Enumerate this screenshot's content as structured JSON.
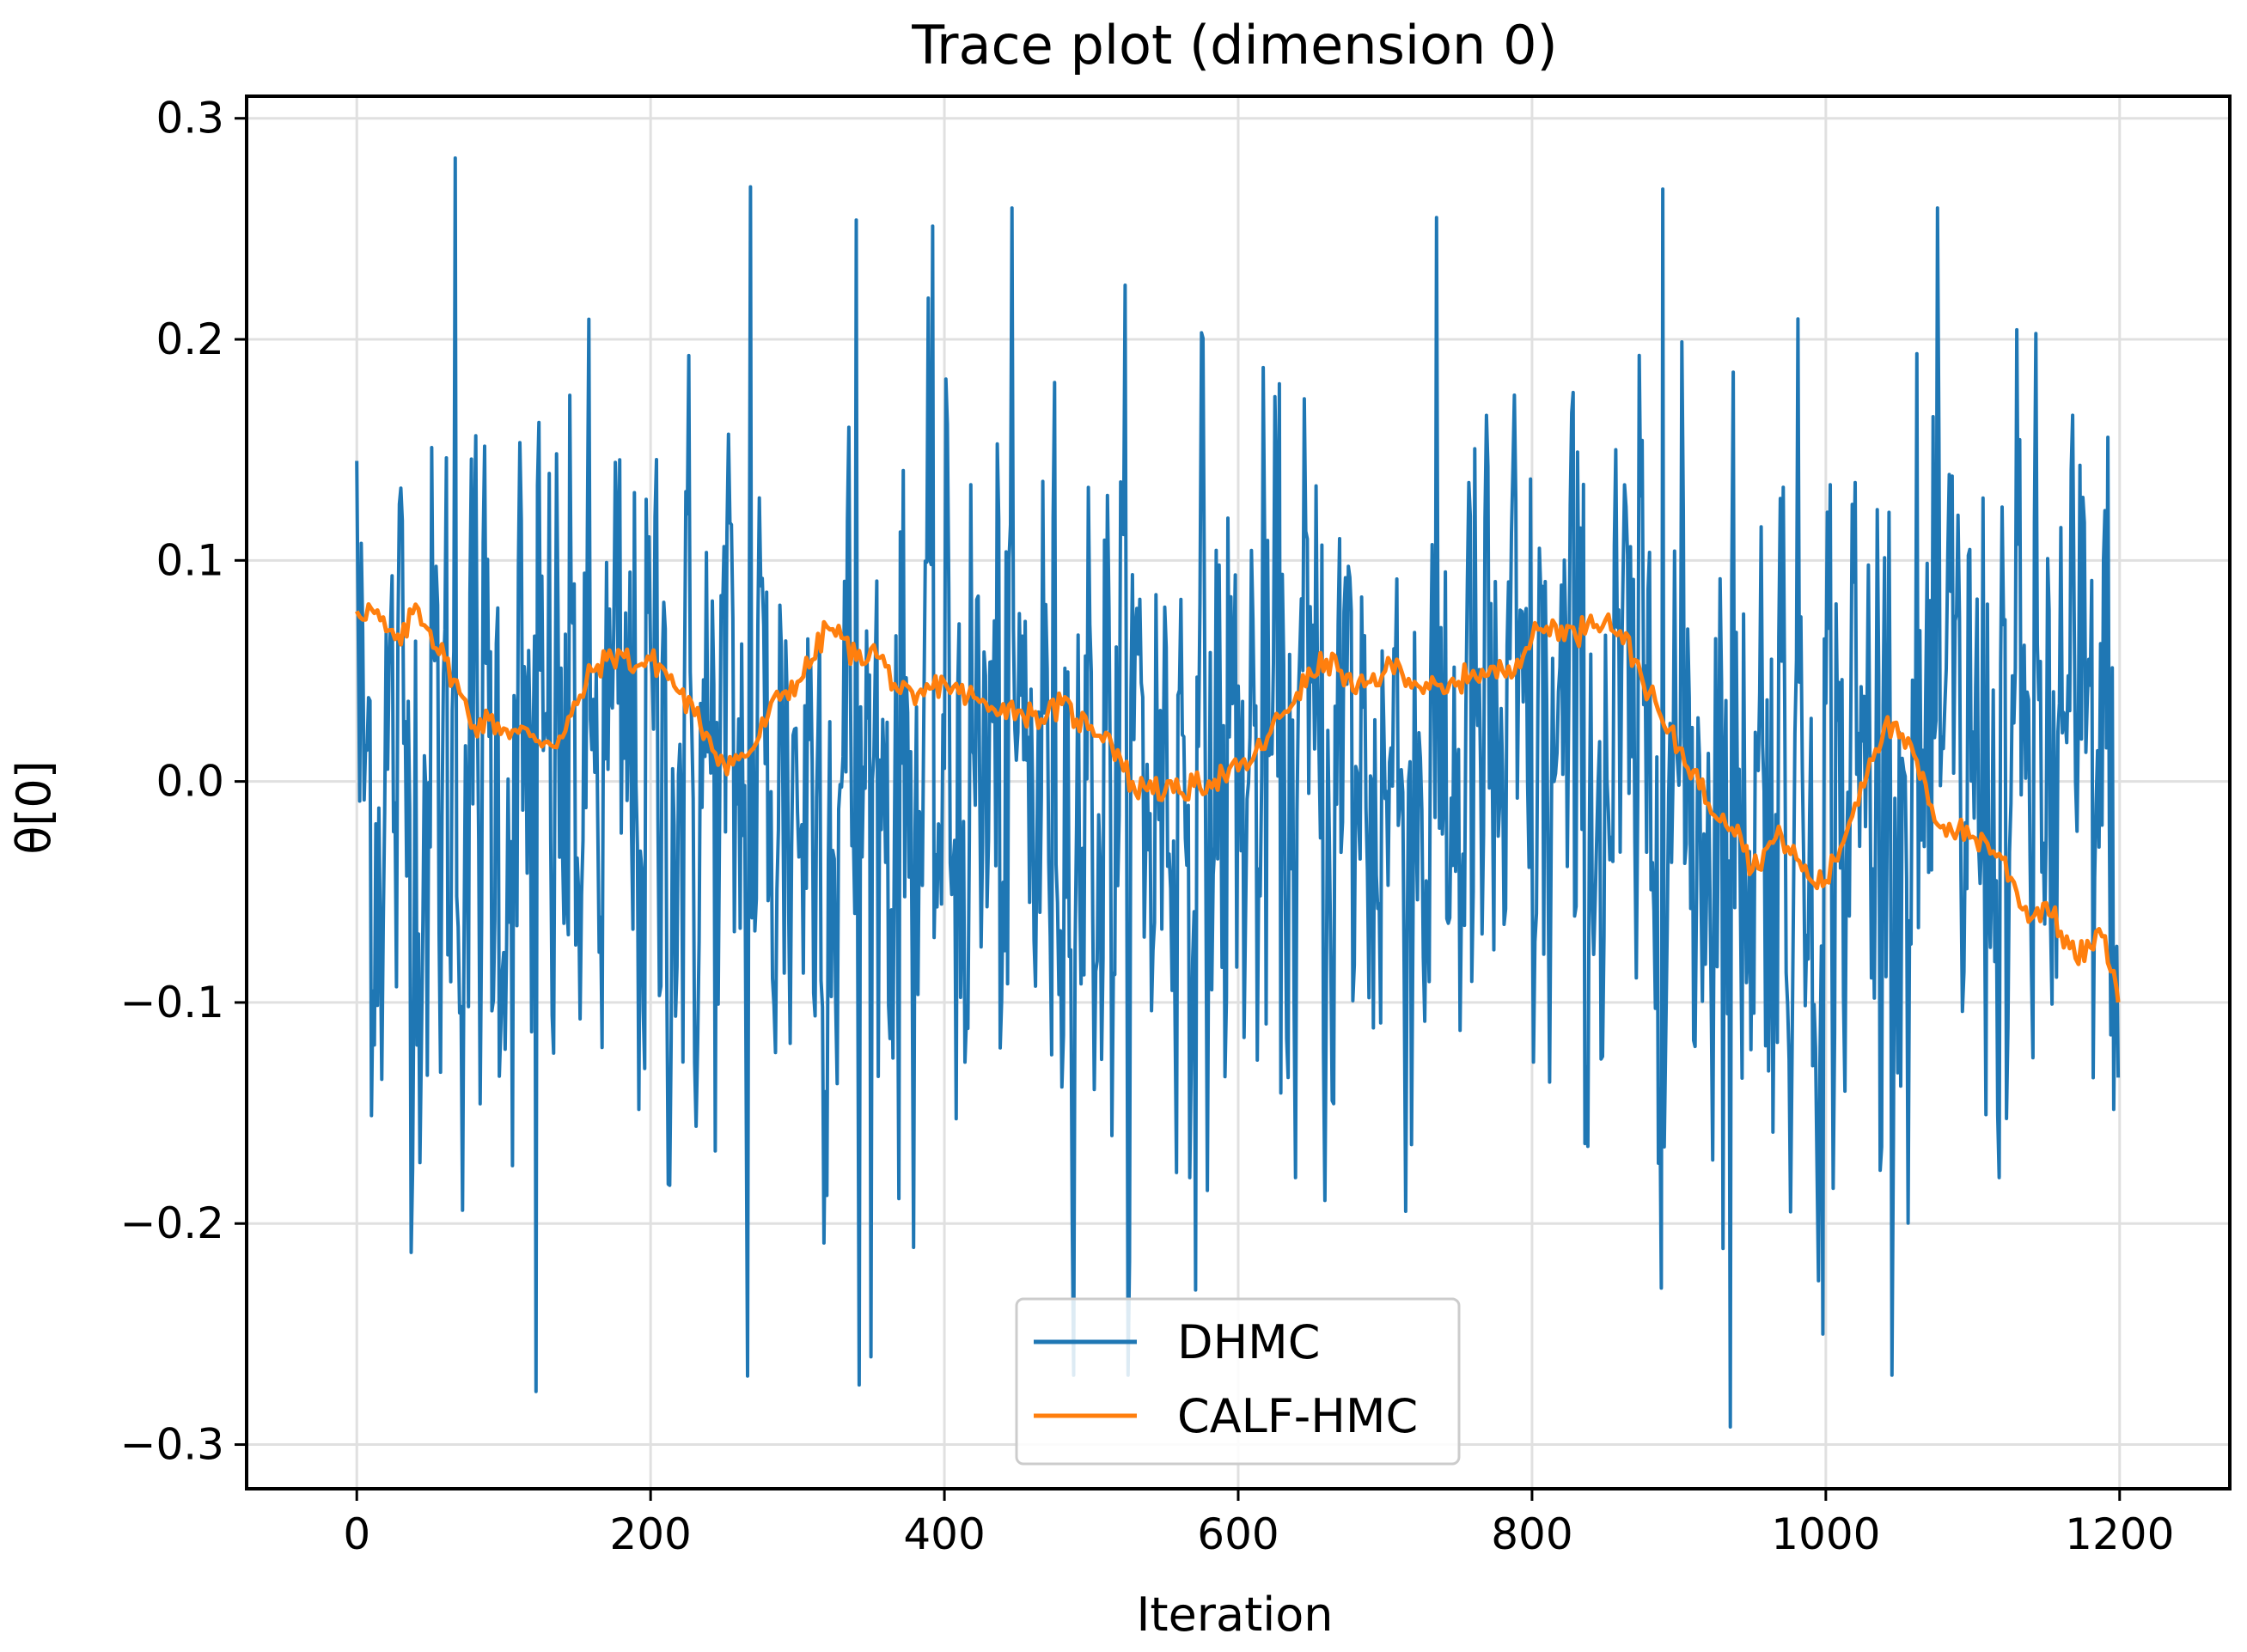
{
  "chart_data": {
    "type": "line",
    "title": "Trace plot (dimension 0)",
    "xlabel": "Iteration",
    "ylabel": "θ[0]",
    "xlim": [
      -75,
      1275
    ],
    "ylim": [
      -0.32,
      0.31
    ],
    "grid": true,
    "legend_position": "lower center",
    "x_ticks": [
      0,
      200,
      400,
      600,
      800,
      1000,
      1200
    ],
    "x_tick_labels": [
      "0",
      "200",
      "400",
      "600",
      "800",
      "1000",
      "1200"
    ],
    "y_ticks": [
      -0.3,
      -0.2,
      -0.1,
      0.0,
      0.1,
      0.2,
      0.3
    ],
    "y_tick_labels": [
      "−0.3",
      "−0.2",
      "−0.1",
      "0.0",
      "0.1",
      "0.2",
      "0.3"
    ],
    "series": [
      {
        "name": "DHMC",
        "color": "#1f77b4",
        "n_points": 1200,
        "description_stats": {
          "mean": 0.0,
          "std": 0.085,
          "min": -0.292,
          "max": 0.282
        },
        "notable_points": [
          {
            "x": 0,
            "y": 0.145
          },
          {
            "x": 67,
            "y": 0.282
          },
          {
            "x": 122,
            "y": -0.276
          },
          {
            "x": 266,
            "y": -0.269
          },
          {
            "x": 268,
            "y": 0.269
          },
          {
            "x": 340,
            "y": 0.254
          },
          {
            "x": 342,
            "y": -0.273
          },
          {
            "x": 889,
            "y": 0.268
          },
          {
            "x": 935,
            "y": -0.292
          },
          {
            "x": 998,
            "y": -0.25
          },
          {
            "x": 1199,
            "y": -0.134
          }
        ]
      },
      {
        "name": "CALF-HMC",
        "color": "#ff7f0e",
        "x": [
          0,
          10,
          20,
          30,
          40,
          50,
          60,
          70,
          80,
          90,
          100,
          110,
          120,
          130,
          140,
          150,
          160,
          170,
          180,
          190,
          200,
          210,
          220,
          230,
          240,
          250,
          260,
          270,
          280,
          290,
          300,
          310,
          320,
          330,
          340,
          350,
          360,
          370,
          380,
          390,
          400,
          410,
          420,
          430,
          440,
          450,
          460,
          470,
          480,
          490,
          500,
          510,
          520,
          530,
          540,
          550,
          560,
          570,
          580,
          590,
          600,
          610,
          620,
          630,
          640,
          650,
          660,
          670,
          680,
          690,
          700,
          710,
          720,
          730,
          740,
          750,
          760,
          770,
          780,
          790,
          800,
          810,
          820,
          830,
          840,
          850,
          860,
          870,
          880,
          890,
          900,
          910,
          920,
          930,
          940,
          950,
          960,
          970,
          980,
          990,
          1000,
          1010,
          1020,
          1030,
          1040,
          1050,
          1060,
          1070,
          1080,
          1090,
          1100,
          1110,
          1120,
          1130,
          1140,
          1150,
          1160,
          1170,
          1180,
          1190,
          1199
        ],
        "y": [
          0.077,
          0.078,
          0.068,
          0.062,
          0.08,
          0.068,
          0.055,
          0.04,
          0.025,
          0.028,
          0.024,
          0.022,
          0.021,
          0.018,
          0.02,
          0.035,
          0.05,
          0.055,
          0.058,
          0.052,
          0.055,
          0.05,
          0.04,
          0.03,
          0.02,
          0.008,
          0.01,
          0.015,
          0.03,
          0.04,
          0.045,
          0.055,
          0.07,
          0.065,
          0.055,
          0.06,
          0.052,
          0.04,
          0.035,
          0.042,
          0.045,
          0.04,
          0.038,
          0.032,
          0.035,
          0.032,
          0.03,
          0.03,
          0.035,
          0.028,
          0.025,
          0.022,
          0.01,
          -0.005,
          0.0,
          -0.005,
          -0.005,
          -0.002,
          0.0,
          0.003,
          0.005,
          0.01,
          0.02,
          0.03,
          0.04,
          0.048,
          0.055,
          0.05,
          0.04,
          0.045,
          0.05,
          0.052,
          0.045,
          0.042,
          0.04,
          0.045,
          0.05,
          0.048,
          0.05,
          0.055,
          0.065,
          0.07,
          0.07,
          0.065,
          0.075,
          0.073,
          0.068,
          0.055,
          0.04,
          0.025,
          0.015,
          0.005,
          -0.01,
          -0.015,
          -0.02,
          -0.04,
          -0.03,
          -0.025,
          -0.035,
          -0.045,
          -0.045,
          -0.03,
          -0.01,
          0.01,
          0.025,
          0.02,
          0.012,
          -0.01,
          -0.02,
          -0.022,
          -0.025,
          -0.028,
          -0.035,
          -0.05,
          -0.062,
          -0.055,
          -0.068,
          -0.08,
          -0.075,
          -0.07,
          -0.1
        ]
      }
    ]
  }
}
